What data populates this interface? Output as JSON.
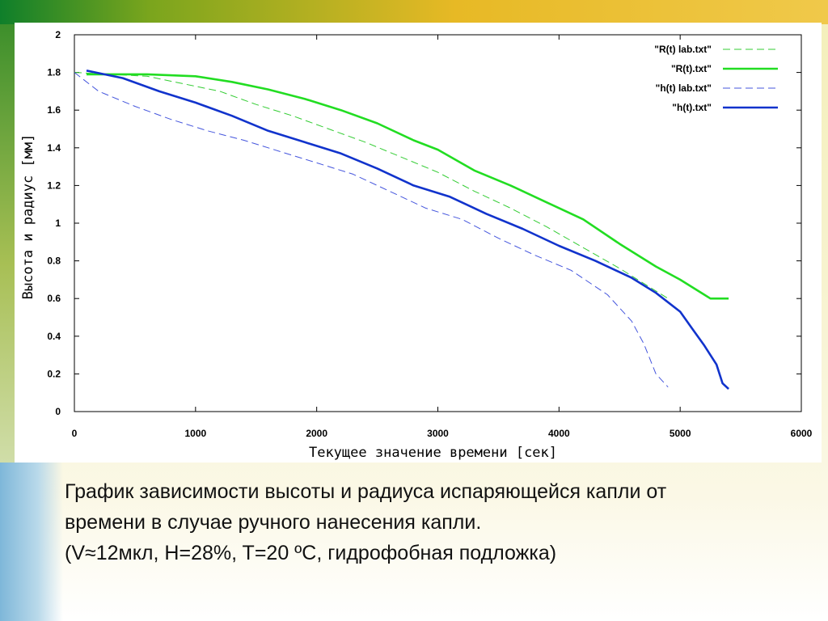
{
  "chart_data": {
    "type": "line",
    "xlabel": "Текущее значение времени [сек]",
    "ylabel": "Высота и радиус [мм]",
    "xlim": [
      0,
      6000
    ],
    "ylim": [
      0,
      2
    ],
    "xticks": [
      "0",
      "1000",
      "2000",
      "3000",
      "4000",
      "5000",
      "6000"
    ],
    "yticks": [
      "0",
      "0.2",
      "0.4",
      "0.6",
      "0.8",
      "1",
      "1.2",
      "1.4",
      "1.6",
      "1.8",
      "2"
    ],
    "legend_position": "top-right",
    "grid": false,
    "series": [
      {
        "name": "\"R(t) lab.txt\"",
        "color": "#33cc33",
        "style": "dashed-thin",
        "points": [
          [
            0,
            1.8
          ],
          [
            300,
            1.79
          ],
          [
            600,
            1.78
          ],
          [
            900,
            1.74
          ],
          [
            1200,
            1.7
          ],
          [
            1500,
            1.63
          ],
          [
            1800,
            1.57
          ],
          [
            2100,
            1.5
          ],
          [
            2400,
            1.43
          ],
          [
            2700,
            1.35
          ],
          [
            3000,
            1.27
          ],
          [
            3300,
            1.17
          ],
          [
            3600,
            1.08
          ],
          [
            3900,
            0.98
          ],
          [
            4200,
            0.87
          ],
          [
            4500,
            0.76
          ],
          [
            4800,
            0.64
          ],
          [
            4900,
            0.6
          ]
        ]
      },
      {
        "name": "\"R(t).txt\"",
        "color": "#22dd22",
        "style": "solid",
        "points": [
          [
            100,
            1.79
          ],
          [
            400,
            1.79
          ],
          [
            600,
            1.79
          ],
          [
            1000,
            1.78
          ],
          [
            1300,
            1.75
          ],
          [
            1600,
            1.71
          ],
          [
            1900,
            1.66
          ],
          [
            2200,
            1.6
          ],
          [
            2500,
            1.53
          ],
          [
            2800,
            1.44
          ],
          [
            3000,
            1.39
          ],
          [
            3300,
            1.28
          ],
          [
            3600,
            1.2
          ],
          [
            3900,
            1.11
          ],
          [
            4200,
            1.02
          ],
          [
            4500,
            0.89
          ],
          [
            4800,
            0.77
          ],
          [
            5000,
            0.7
          ],
          [
            5200,
            0.62
          ],
          [
            5250,
            0.6
          ],
          [
            5400,
            0.6
          ]
        ]
      },
      {
        "name": "\"h(t) lab.txt\"",
        "color": "#4455dd",
        "style": "dashed-thin",
        "points": [
          [
            0,
            1.8
          ],
          [
            200,
            1.7
          ],
          [
            500,
            1.62
          ],
          [
            800,
            1.55
          ],
          [
            1100,
            1.49
          ],
          [
            1400,
            1.44
          ],
          [
            1700,
            1.38
          ],
          [
            2000,
            1.32
          ],
          [
            2300,
            1.26
          ],
          [
            2600,
            1.17
          ],
          [
            2900,
            1.08
          ],
          [
            3200,
            1.02
          ],
          [
            3500,
            0.92
          ],
          [
            3800,
            0.83
          ],
          [
            4100,
            0.75
          ],
          [
            4400,
            0.62
          ],
          [
            4600,
            0.48
          ],
          [
            4700,
            0.36
          ],
          [
            4800,
            0.2
          ],
          [
            4900,
            0.13
          ]
        ]
      },
      {
        "name": "\"h(t).txt\"",
        "color": "#1133cc",
        "style": "solid",
        "points": [
          [
            100,
            1.81
          ],
          [
            400,
            1.77
          ],
          [
            700,
            1.7
          ],
          [
            1000,
            1.64
          ],
          [
            1300,
            1.57
          ],
          [
            1600,
            1.49
          ],
          [
            1900,
            1.43
          ],
          [
            2200,
            1.37
          ],
          [
            2500,
            1.29
          ],
          [
            2800,
            1.2
          ],
          [
            3100,
            1.14
          ],
          [
            3400,
            1.05
          ],
          [
            3700,
            0.97
          ],
          [
            4000,
            0.88
          ],
          [
            4300,
            0.8
          ],
          [
            4600,
            0.71
          ],
          [
            4800,
            0.63
          ],
          [
            5000,
            0.53
          ],
          [
            5100,
            0.44
          ],
          [
            5200,
            0.35
          ],
          [
            5300,
            0.25
          ],
          [
            5350,
            0.15
          ],
          [
            5400,
            0.12
          ]
        ]
      }
    ]
  },
  "caption": {
    "line1": "График зависимости высоты и радиуса испаряющейся капли от",
    "line2": "времени в случае ручного нанесения капли.",
    "line3": "(V≈12мкл, H=28%, T=20 ºC, гидрофобная подложка)"
  }
}
